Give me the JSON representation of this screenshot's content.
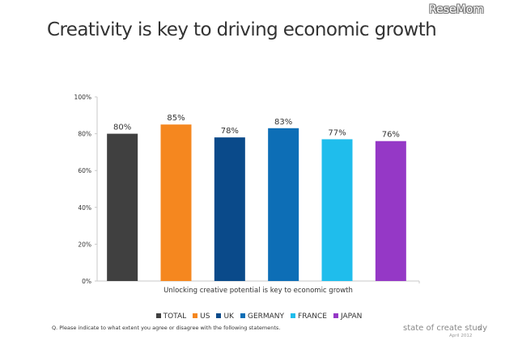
{
  "header": {
    "logo": "ReseMom",
    "title": "Creativity is key to driving economic growth"
  },
  "chart_data": {
    "type": "bar",
    "title": "Creativity is key to driving economic growth",
    "xlabel": "",
    "ylabel": "",
    "categories": [
      "TOTAL",
      "US",
      "UK",
      "GERMANY",
      "FRANCE",
      "JAPAN"
    ],
    "category_axis_label": "Unlocking creative potential is key to economic growth",
    "values": [
      80,
      85,
      78,
      83,
      77,
      76
    ],
    "data_labels": [
      "80%",
      "85%",
      "78%",
      "83%",
      "77%",
      "76%"
    ],
    "colors": [
      "#404040",
      "#f5871f",
      "#0a4a8a",
      "#0d6eb6",
      "#1fbdec",
      "#9538c6"
    ],
    "ylim": [
      0,
      100
    ],
    "yticks": [
      0,
      20,
      40,
      60,
      80,
      100
    ],
    "ytick_labels": [
      "0%",
      "20%",
      "40%",
      "60%",
      "80%",
      "100%"
    ],
    "grid": false,
    "legend": {
      "placement": "bottom",
      "entries": [
        "TOTAL",
        "US",
        "UK",
        "GERMANY",
        "FRANCE",
        "JAPAN"
      ]
    }
  },
  "footer": {
    "note": "Q. Please indicate to what extent you agree or disagree with the following statements.",
    "brand": "state of create study",
    "page": "5",
    "date": "April 2012"
  }
}
